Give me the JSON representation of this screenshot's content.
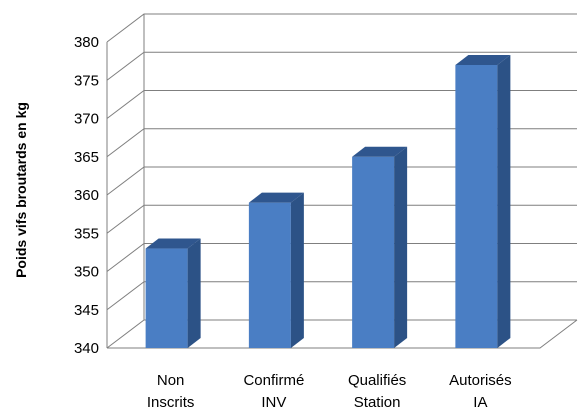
{
  "chart_data": {
    "type": "bar",
    "title": "",
    "xlabel": "",
    "ylabel": "Poids vifs broutards en kg",
    "categories": [
      [
        "Non",
        "Inscrits"
      ],
      [
        "Confirmé",
        "INV"
      ],
      [
        "Qualifiés",
        "Station"
      ],
      [
        "Autorisés",
        "IA"
      ]
    ],
    "values": [
      353,
      359,
      365,
      377
    ],
    "ylim": [
      340,
      380
    ],
    "yticks": [
      "340",
      "345",
      "350",
      "355",
      "360",
      "365",
      "370",
      "375",
      "380"
    ],
    "grid": true,
    "legend": "none",
    "style": "3d-bar"
  },
  "colors": {
    "bar_front": "#4a7ec4",
    "bar_side": "#2c5286",
    "bar_top": "#2f568e",
    "grid": "#7f7f7f",
    "background": "#ffffff"
  }
}
